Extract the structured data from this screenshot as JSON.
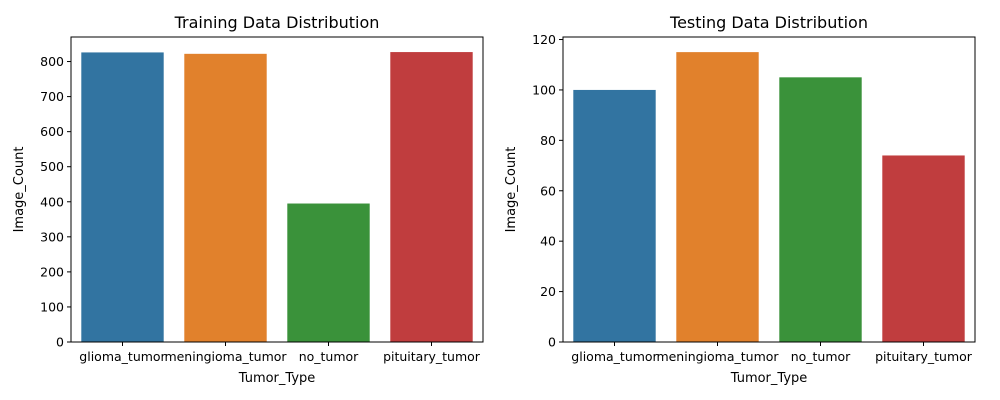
{
  "chart_data": [
    {
      "type": "bar",
      "title": "Training Data Distribution",
      "xlabel": "Tumor_Type",
      "ylabel": "Image_Count",
      "categories": [
        "glioma_tumor",
        "meningioma_tumor",
        "no_tumor",
        "pituitary_tumor"
      ],
      "values": [
        826,
        822,
        395,
        827
      ],
      "colors": [
        "#3274a1",
        "#e1812c",
        "#3a923a",
        "#c03d3e"
      ],
      "ylim": [
        0,
        870
      ],
      "yticks": [
        0,
        100,
        200,
        300,
        400,
        500,
        600,
        700,
        800
      ],
      "grid": false,
      "legend": "none"
    },
    {
      "type": "bar",
      "title": "Testing Data Distribution",
      "xlabel": "Tumor_Type",
      "ylabel": "Image_Count",
      "categories": [
        "glioma_tumor",
        "meningioma_tumor",
        "no_tumor",
        "pituitary_tumor"
      ],
      "values": [
        100,
        115,
        105,
        74
      ],
      "colors": [
        "#3274a1",
        "#e1812c",
        "#3a923a",
        "#c03d3e"
      ],
      "ylim": [
        0,
        121
      ],
      "yticks": [
        0,
        20,
        40,
        60,
        80,
        100,
        120
      ],
      "grid": false,
      "legend": "none"
    }
  ]
}
